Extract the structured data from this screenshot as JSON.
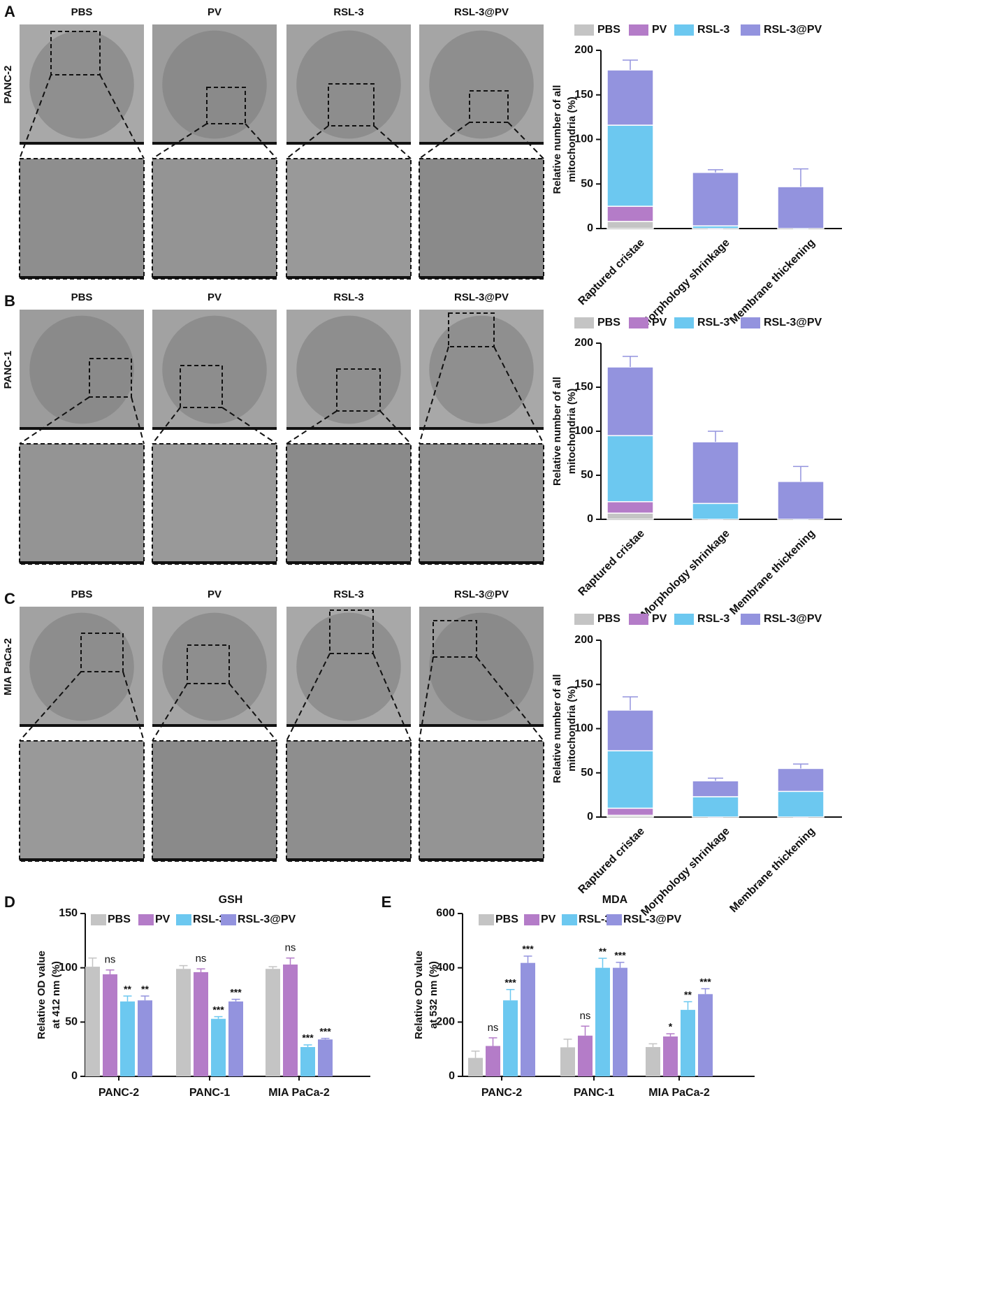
{
  "figure": {
    "panels": [
      {
        "letter": "A",
        "cell_line": "PANC-2",
        "groups": [
          "PBS",
          "PV",
          "RSL-3",
          "RSL-3@PV"
        ]
      },
      {
        "letter": "B",
        "cell_line": "PANC-1",
        "groups": [
          "PBS",
          "PV",
          "RSL-3",
          "RSL-3@PV"
        ]
      },
      {
        "letter": "C",
        "cell_line": "MIA PaCa-2",
        "groups": [
          "PBS",
          "PV",
          "RSL-3",
          "RSL-3@PV"
        ]
      },
      {
        "letter": "D"
      },
      {
        "letter": "E"
      }
    ]
  },
  "chart_data": [
    {
      "type": "stacked_bar",
      "ylabel": [
        "Relative number of all",
        "mitochondria (%)"
      ],
      "categories": [
        "Raptured cristae",
        "Morphology shrinkage",
        "Membrane thickening"
      ],
      "ylim": [
        0,
        200
      ],
      "yticks": [
        0,
        50,
        100,
        150,
        200
      ],
      "series": [
        {
          "name": "PBS",
          "color": "#c4c4c4",
          "values": [
            8,
            0,
            0
          ],
          "errors": [
            7,
            0,
            0
          ]
        },
        {
          "name": "PV",
          "color": "#b47cc8",
          "values": [
            17,
            0,
            0
          ],
          "errors": [
            12,
            0,
            0
          ]
        },
        {
          "name": "RSL-3",
          "color": "#6cc8f0",
          "values": [
            91,
            3,
            0
          ],
          "errors": [
            13,
            4,
            0
          ]
        },
        {
          "name": "RSL-3@PV",
          "color": "#9393de",
          "values": [
            62,
            60,
            47
          ],
          "errors": [
            11,
            3,
            20
          ]
        }
      ]
    },
    {
      "type": "stacked_bar",
      "ylabel": [
        "Relative number of all",
        "mitochondria (%)"
      ],
      "categories": [
        "Raptured cristae",
        "Morphology shrinkage",
        "Membrane thickening"
      ],
      "ylim": [
        0,
        200
      ],
      "yticks": [
        0,
        50,
        100,
        150,
        200
      ],
      "series": [
        {
          "name": "PBS",
          "color": "#c4c4c4",
          "values": [
            7,
            0,
            0
          ],
          "errors": [
            3,
            0,
            0
          ]
        },
        {
          "name": "PV",
          "color": "#b47cc8",
          "values": [
            13,
            0,
            0
          ],
          "errors": [
            6,
            0,
            0
          ]
        },
        {
          "name": "RSL-3",
          "color": "#6cc8f0",
          "values": [
            75,
            18,
            0
          ],
          "errors": [
            17,
            10,
            0
          ]
        },
        {
          "name": "RSL-3@PV",
          "color": "#9393de",
          "values": [
            78,
            70,
            43
          ],
          "errors": [
            12,
            12,
            17
          ]
        }
      ]
    },
    {
      "type": "stacked_bar",
      "ylabel": [
        "Relative number of all",
        "mitochondria (%)"
      ],
      "categories": [
        "Raptured cristae",
        "Morphology shrinkage",
        "Membrane thickening"
      ],
      "ylim": [
        0,
        200
      ],
      "yticks": [
        0,
        50,
        100,
        150,
        200
      ],
      "series": [
        {
          "name": "PBS",
          "color": "#c4c4c4",
          "values": [
            2,
            0,
            0
          ],
          "errors": [
            1,
            0,
            0
          ]
        },
        {
          "name": "PV",
          "color": "#b47cc8",
          "values": [
            8,
            0,
            0
          ],
          "errors": [
            4,
            0,
            0
          ]
        },
        {
          "name": "RSL-3",
          "color": "#6cc8f0",
          "values": [
            65,
            23,
            29
          ],
          "errors": [
            12,
            7,
            10
          ]
        },
        {
          "name": "RSL-3@PV",
          "color": "#9393de",
          "values": [
            46,
            18,
            26
          ],
          "errors": [
            15,
            3,
            5
          ]
        }
      ]
    },
    {
      "type": "bar",
      "title": "GSH",
      "ylabel": [
        "Relative OD value",
        "at 412 nm (%)"
      ],
      "categories": [
        "PANC-2",
        "PANC-1",
        "MIA PaCa-2"
      ],
      "ylim": [
        0,
        150
      ],
      "yticks": [
        0,
        50,
        100,
        150
      ],
      "series": [
        {
          "name": "PBS",
          "color": "#c4c4c4",
          "values": [
            101,
            99,
            99
          ],
          "errors": [
            8,
            3,
            2
          ]
        },
        {
          "name": "PV",
          "color": "#b47cc8",
          "values": [
            94,
            96,
            103
          ],
          "errors": [
            4,
            3,
            6
          ],
          "annotations": [
            "ns",
            "ns",
            "ns"
          ]
        },
        {
          "name": "RSL-3",
          "color": "#6cc8f0",
          "values": [
            69,
            53,
            27
          ],
          "errors": [
            5,
            2,
            2
          ],
          "annotations": [
            "**",
            "***",
            "***"
          ]
        },
        {
          "name": "RSL-3@PV",
          "color": "#9393de",
          "values": [
            70,
            69,
            34
          ],
          "errors": [
            4,
            2,
            1
          ],
          "annotations": [
            "**",
            "***",
            "***"
          ]
        }
      ]
    },
    {
      "type": "bar",
      "title": "MDA",
      "ylabel": [
        "Relative OD value",
        "at 532 nm (%)"
      ],
      "categories": [
        "PANC-2",
        "PANC-1",
        "MIA PaCa-2"
      ],
      "ylim": [
        0,
        600
      ],
      "yticks": [
        0,
        200,
        400,
        600
      ],
      "series": [
        {
          "name": "PBS",
          "color": "#c4c4c4",
          "values": [
            68,
            107,
            108
          ],
          "errors": [
            25,
            30,
            12
          ]
        },
        {
          "name": "PV",
          "color": "#b47cc8",
          "values": [
            112,
            150,
            147
          ],
          "errors": [
            30,
            35,
            10
          ],
          "annotations": [
            "ns",
            "ns",
            "*"
          ]
        },
        {
          "name": "RSL-3",
          "color": "#6cc8f0",
          "values": [
            280,
            400,
            245
          ],
          "errors": [
            40,
            35,
            30
          ],
          "annotations": [
            "***",
            "**",
            "**"
          ]
        },
        {
          "name": "RSL-3@PV",
          "color": "#9393de",
          "values": [
            418,
            400,
            303
          ],
          "errors": [
            25,
            20,
            20
          ],
          "annotations": [
            "***",
            "***",
            "***"
          ]
        }
      ]
    }
  ]
}
